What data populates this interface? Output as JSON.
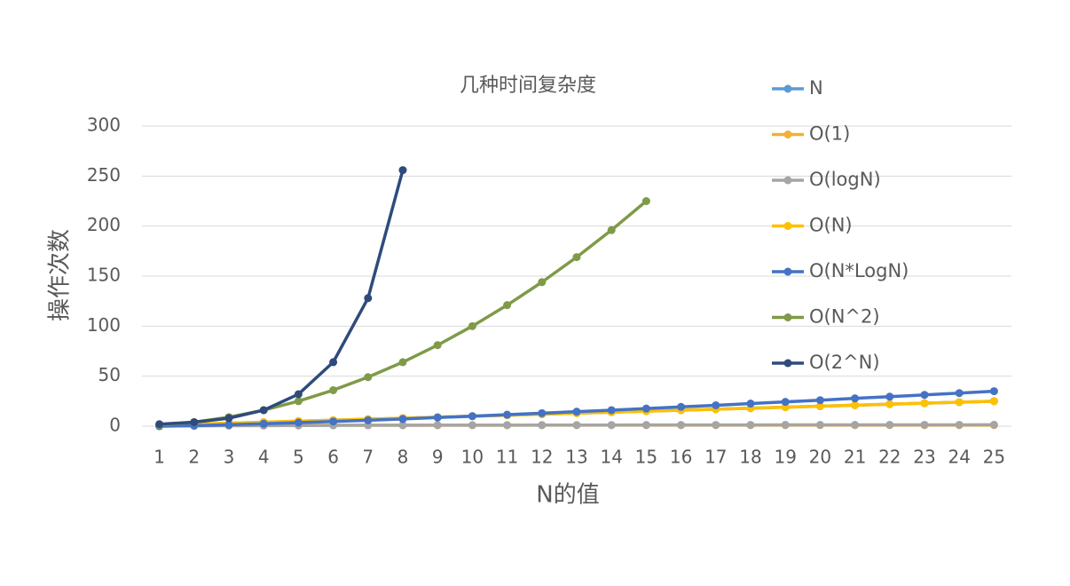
{
  "chart_data": {
    "type": "line",
    "title": "几种时间复杂度",
    "x_label": "N的值",
    "y_label": "操作次数",
    "categories": [
      1,
      2,
      3,
      4,
      5,
      6,
      7,
      8,
      9,
      10,
      11,
      12,
      13,
      14,
      15,
      16,
      17,
      18,
      19,
      20,
      21,
      22,
      23,
      24,
      25
    ],
    "ylim": [
      0,
      300
    ],
    "yticks": [
      0,
      50,
      100,
      150,
      200,
      250,
      300
    ],
    "grid": true,
    "legend": "right",
    "series": [
      {
        "name": "N",
        "color": "#5b9bd5",
        "values": [
          1,
          2,
          3,
          4,
          5,
          6,
          7,
          8,
          9,
          10,
          11,
          12,
          13,
          14,
          15,
          16,
          17,
          18,
          19,
          20,
          21,
          22,
          23,
          24,
          25
        ]
      },
      {
        "name": "O(1)",
        "color": "#f2b035",
        "values": [
          1,
          1,
          1,
          1,
          1,
          1,
          1,
          1,
          1,
          1,
          1,
          1,
          1,
          1,
          1,
          1,
          1,
          1,
          1,
          1,
          1,
          1,
          1,
          1,
          1
        ]
      },
      {
        "name": "O(logN)",
        "color": "#a5a5a5",
        "values": [
          0,
          0.3,
          0.48,
          0.6,
          0.7,
          0.78,
          0.85,
          0.9,
          0.95,
          1,
          1.04,
          1.08,
          1.11,
          1.15,
          1.18,
          1.2,
          1.23,
          1.26,
          1.28,
          1.3,
          1.32,
          1.34,
          1.36,
          1.38,
          1.4
        ]
      },
      {
        "name": "O(N)",
        "color": "#ffc000",
        "values": [
          1,
          2,
          3,
          4,
          5,
          6,
          7,
          8,
          9,
          10,
          11,
          12,
          13,
          14,
          15,
          16,
          17,
          18,
          19,
          20,
          21,
          22,
          23,
          24,
          25
        ]
      },
      {
        "name": "O(N*LogN)",
        "color": "#4472c4",
        "values": [
          0,
          0.6,
          1.4,
          2.4,
          3.5,
          4.7,
          5.9,
          7.2,
          8.6,
          10,
          11.5,
          13,
          14.5,
          16,
          17.6,
          19.3,
          20.9,
          22.6,
          24.3,
          26,
          27.8,
          29.5,
          31.3,
          33.1,
          35
        ]
      },
      {
        "name": "O(N^2)",
        "color": "#7f9a48",
        "values": [
          1,
          4,
          9,
          16,
          25,
          36,
          49,
          64,
          81,
          100,
          121,
          144,
          169,
          196,
          225,
          null,
          null,
          null,
          null,
          null,
          null,
          null,
          null,
          null,
          null
        ]
      },
      {
        "name": "O(2^N)",
        "color": "#2f4b7c",
        "values": [
          2,
          4,
          8,
          16,
          32,
          64,
          128,
          256,
          null,
          null,
          null,
          null,
          null,
          null,
          null,
          null,
          null,
          null,
          null,
          null,
          null,
          null,
          null,
          null,
          null
        ]
      }
    ]
  }
}
